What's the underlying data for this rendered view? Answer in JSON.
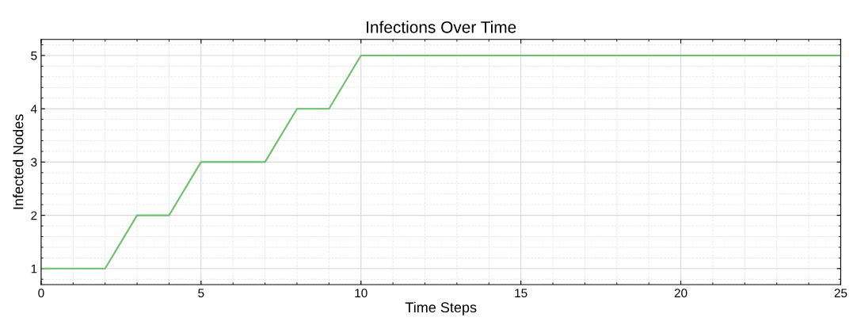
{
  "chart_data": {
    "type": "line",
    "title": "Infections Over Time",
    "xlabel": "Time Steps",
    "ylabel": "Infected Nodes",
    "x": [
      0,
      1,
      2,
      3,
      4,
      5,
      6,
      7,
      8,
      9,
      10,
      11,
      12,
      13,
      14,
      15,
      16,
      17,
      18,
      19,
      20,
      21,
      22,
      23,
      24,
      25
    ],
    "series": [
      {
        "color": "#6cc06c",
        "values": [
          1,
          1,
          1,
          2,
          2,
          3,
          3,
          3,
          4,
          4,
          5,
          5,
          5,
          5,
          5,
          5,
          5,
          5,
          5,
          5,
          5,
          5,
          5,
          5,
          5,
          5
        ]
      }
    ],
    "xlim": [
      0,
      25
    ],
    "xticks": [
      0,
      5,
      10,
      15,
      20,
      25
    ],
    "ylim": [
      0.7,
      5.3
    ],
    "yticks": [
      1,
      2,
      3,
      4,
      5
    ],
    "grid": true,
    "marker": "none",
    "line_style": "solid"
  }
}
